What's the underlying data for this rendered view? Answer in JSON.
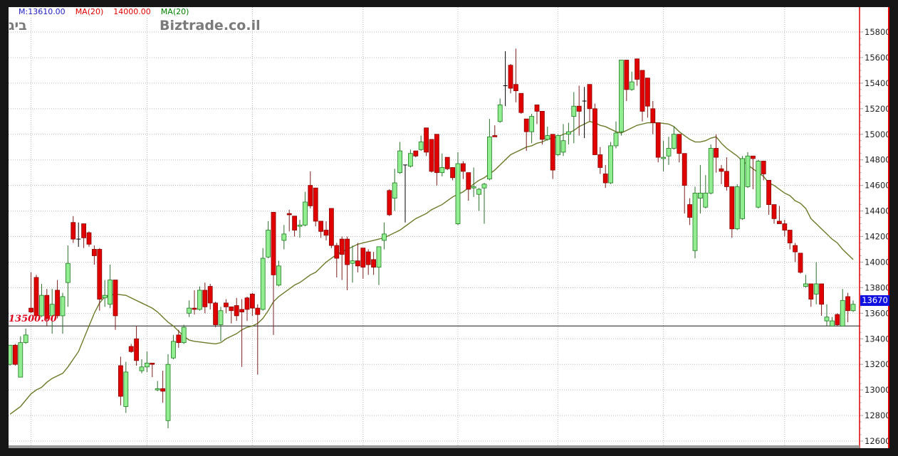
{
  "header": {
    "legend": [
      {
        "text": "M:13610.00",
        "color": "#2020c0"
      },
      {
        "text": "MA(20)",
        "color": "#e00000"
      },
      {
        "text": "14000.00",
        "color": "#e00000"
      },
      {
        "text": "MA(20)",
        "color": "#008000"
      }
    ],
    "logo_left": "ביג",
    "logo": "Biztrade.co.il"
  },
  "chart_data": {
    "type": "candlestick",
    "ylim": [
      12600,
      15800
    ],
    "yticks": [
      12600,
      12800,
      13000,
      13200,
      13400,
      13600,
      13800,
      14000,
      14200,
      14400,
      14600,
      14800,
      15000,
      15200,
      15400,
      15600,
      15800
    ],
    "grid": true,
    "horizontal_line": {
      "value": 13500,
      "label": "13500.00"
    },
    "last_price": {
      "label": "13670",
      "value": 13670
    },
    "colors": {
      "up": "#90ee90",
      "down": "#e00000",
      "ma": "#6b7a2a",
      "axis": "#e00000",
      "badge": "#1010e0"
    },
    "ohlc": [
      [
        13200,
        13350,
        13190,
        13350
      ],
      [
        13350,
        13360,
        13190,
        13200
      ],
      [
        13100,
        13420,
        13100,
        13370
      ],
      [
        13370,
        13480,
        13360,
        13430
      ],
      [
        13640,
        13920,
        13600,
        13610
      ],
      [
        13880,
        13900,
        13570,
        13580
      ],
      [
        13580,
        13830,
        13570,
        13740
      ],
      [
        13740,
        13790,
        13500,
        13560
      ],
      [
        13580,
        13790,
        13440,
        13670
      ],
      [
        13780,
        13860,
        13560,
        13580
      ],
      [
        13580,
        13760,
        13440,
        13730
      ],
      [
        13840,
        14130,
        13650,
        13990
      ],
      [
        14310,
        14360,
        14150,
        14180
      ],
      [
        14180,
        14310,
        14120,
        14180
      ],
      [
        14300,
        14300,
        14110,
        14190
      ],
      [
        14230,
        14240,
        14120,
        14140
      ],
      [
        14100,
        14130,
        13980,
        14050
      ],
      [
        14100,
        14110,
        13620,
        13710
      ],
      [
        13720,
        13860,
        13650,
        13740
      ],
      [
        13670,
        13980,
        13640,
        13860
      ],
      [
        13860,
        13860,
        13470,
        13580
      ],
      [
        13190,
        13260,
        12880,
        12950
      ],
      [
        12870,
        13220,
        12820,
        13140
      ],
      [
        13340,
        13360,
        13290,
        13300
      ],
      [
        13400,
        13500,
        13190,
        13230
      ],
      [
        13150,
        13240,
        13130,
        13180
      ],
      [
        13180,
        13300,
        13140,
        13210
      ],
      [
        13210,
        13210,
        13100,
        13200
      ],
      [
        13000,
        13070,
        12990,
        13010
      ],
      [
        13010,
        13150,
        12900,
        12990
      ],
      [
        12760,
        13280,
        12700,
        13200
      ],
      [
        13250,
        13430,
        13240,
        13380
      ],
      [
        13430,
        13470,
        13330,
        13370
      ],
      [
        13370,
        13510,
        13360,
        13490
      ],
      [
        13600,
        13700,
        13570,
        13640
      ],
      [
        13640,
        13780,
        13590,
        13630
      ],
      [
        13630,
        13810,
        13620,
        13780
      ],
      [
        13780,
        13840,
        13600,
        13650
      ],
      [
        13810,
        13830,
        13630,
        13680
      ],
      [
        13680,
        13690,
        13490,
        13510
      ],
      [
        13510,
        13650,
        13380,
        13620
      ],
      [
        13680,
        13710,
        13600,
        13650
      ],
      [
        13650,
        13650,
        13520,
        13620
      ],
      [
        13660,
        13720,
        13540,
        13580
      ],
      [
        13630,
        13710,
        13180,
        13610
      ],
      [
        13720,
        13730,
        13540,
        13630
      ],
      [
        13750,
        13760,
        13580,
        13640
      ],
      [
        13640,
        13670,
        13120,
        13590
      ],
      [
        13630,
        14110,
        13620,
        14030
      ],
      [
        14040,
        14320,
        14030,
        14250
      ],
      [
        14390,
        14390,
        13430,
        13900
      ],
      [
        13820,
        14010,
        13810,
        13970
      ],
      [
        14170,
        14290,
        14100,
        14220
      ],
      [
        14380,
        14410,
        14240,
        14370
      ],
      [
        14360,
        14360,
        14200,
        14250
      ],
      [
        14280,
        14330,
        14190,
        14290
      ],
      [
        14290,
        14550,
        14280,
        14470
      ],
      [
        14600,
        14710,
        14420,
        14440
      ],
      [
        14580,
        14580,
        14280,
        14320
      ],
      [
        14320,
        14320,
        14190,
        14240
      ],
      [
        14250,
        14320,
        14170,
        14210
      ],
      [
        14420,
        14420,
        14110,
        14130
      ],
      [
        14130,
        14150,
        13880,
        14030
      ],
      [
        14180,
        14200,
        13860,
        14060
      ],
      [
        14180,
        14200,
        13780,
        13980
      ],
      [
        13990,
        14130,
        13840,
        14010
      ],
      [
        14010,
        14150,
        13920,
        13970
      ],
      [
        14110,
        14110,
        13870,
        13960
      ],
      [
        14080,
        14100,
        13900,
        13980
      ],
      [
        14020,
        14080,
        13900,
        13960
      ],
      [
        13960,
        14120,
        13820,
        14120
      ],
      [
        14170,
        14310,
        14100,
        14220
      ],
      [
        14560,
        14570,
        14360,
        14370
      ],
      [
        14500,
        14730,
        14400,
        14620
      ],
      [
        14700,
        14940,
        14690,
        14870
      ],
      [
        14760,
        14760,
        14310,
        14760
      ],
      [
        14750,
        14880,
        14740,
        14850
      ],
      [
        14870,
        14870,
        14820,
        14830
      ],
      [
        14880,
        14990,
        14870,
        14940
      ],
      [
        15050,
        15050,
        14830,
        14860
      ],
      [
        14960,
        14960,
        14700,
        14710
      ],
      [
        15000,
        15000,
        14600,
        14700
      ],
      [
        14700,
        14850,
        14670,
        14740
      ],
      [
        14820,
        14820,
        14720,
        14730
      ],
      [
        14740,
        14740,
        14640,
        14660
      ],
      [
        14300,
        14860,
        14290,
        14770
      ],
      [
        14770,
        14790,
        14650,
        14710
      ],
      [
        14700,
        14700,
        14480,
        14570
      ],
      [
        14580,
        14740,
        14510,
        14590
      ],
      [
        14530,
        14580,
        14400,
        14570
      ],
      [
        14580,
        14620,
        14300,
        14610
      ],
      [
        14650,
        15120,
        14640,
        14980
      ],
      [
        14990,
        15070,
        14980,
        14980
      ],
      [
        15100,
        15280,
        15090,
        15230
      ],
      [
        15380,
        15650,
        15220,
        15380
      ],
      [
        15540,
        15550,
        15320,
        15360
      ],
      [
        15390,
        15670,
        15250,
        15340
      ],
      [
        15320,
        15320,
        15160,
        15170
      ],
      [
        15120,
        15120,
        14870,
        15020
      ],
      [
        15020,
        15160,
        14930,
        15140
      ],
      [
        15230,
        15230,
        15080,
        15180
      ],
      [
        15180,
        15180,
        14920,
        14960
      ],
      [
        14960,
        15060,
        14950,
        14990
      ],
      [
        15000,
        15000,
        14650,
        14720
      ],
      [
        14840,
        15000,
        14830,
        14990
      ],
      [
        14860,
        15080,
        14830,
        14950
      ],
      [
        15000,
        15090,
        14920,
        15020
      ],
      [
        15140,
        15330,
        14930,
        15220
      ],
      [
        15220,
        15380,
        14990,
        15180
      ],
      [
        15260,
        15370,
        14970,
        15260
      ],
      [
        15390,
        15390,
        15100,
        15200
      ],
      [
        15200,
        15240,
        14840,
        14840
      ],
      [
        14840,
        14900,
        14690,
        14740
      ],
      [
        14690,
        14760,
        14580,
        14620
      ],
      [
        14620,
        14940,
        14610,
        14910
      ],
      [
        14910,
        15100,
        14890,
        15010
      ],
      [
        15020,
        15580,
        14990,
        15580
      ],
      [
        15580,
        15580,
        15260,
        15350
      ],
      [
        15350,
        15490,
        15340,
        15410
      ],
      [
        15590,
        15590,
        15380,
        15430
      ],
      [
        15500,
        15500,
        15100,
        15180
      ],
      [
        15440,
        15440,
        15130,
        15220
      ],
      [
        15200,
        15260,
        15000,
        15090
      ],
      [
        15090,
        15090,
        14780,
        14820
      ],
      [
        14810,
        14950,
        14710,
        14820
      ],
      [
        14830,
        14980,
        14760,
        14890
      ],
      [
        14890,
        15060,
        14880,
        15000
      ],
      [
        15000,
        15000,
        14780,
        14850
      ],
      [
        14850,
        14850,
        14380,
        14600
      ],
      [
        14450,
        14500,
        14290,
        14350
      ],
      [
        14090,
        14590,
        14030,
        14540
      ],
      [
        14500,
        14760,
        14380,
        14540
      ],
      [
        14430,
        14680,
        14420,
        14540
      ],
      [
        14540,
        14920,
        14530,
        14890
      ],
      [
        14890,
        15000,
        14700,
        14820
      ],
      [
        14730,
        14760,
        14610,
        14710
      ],
      [
        14710,
        14820,
        14560,
        14590
      ],
      [
        14590,
        14590,
        14190,
        14260
      ],
      [
        14260,
        14610,
        14250,
        14590
      ],
      [
        14340,
        14830,
        14330,
        14810
      ],
      [
        14590,
        14860,
        14580,
        14830
      ],
      [
        14830,
        14830,
        14570,
        14810
      ],
      [
        14430,
        14800,
        14420,
        14790
      ],
      [
        14790,
        14790,
        14640,
        14690
      ],
      [
        14640,
        14640,
        14370,
        14450
      ],
      [
        14450,
        14450,
        14300,
        14340
      ],
      [
        14320,
        14440,
        14300,
        14300
      ],
      [
        14300,
        14330,
        14200,
        14250
      ],
      [
        14250,
        14250,
        14100,
        14150
      ],
      [
        14130,
        14150,
        14000,
        14080
      ],
      [
        14070,
        14070,
        13910,
        13920
      ],
      [
        13810,
        13900,
        13800,
        13830
      ],
      [
        13830,
        13830,
        13650,
        13710
      ],
      [
        13750,
        14000,
        13670,
        13830
      ],
      [
        13830,
        13830,
        13580,
        13670
      ],
      [
        13540,
        13670,
        13500,
        13570
      ],
      [
        13500,
        13570,
        13500,
        13540
      ],
      [
        13590,
        13600,
        13500,
        13510
      ],
      [
        13500,
        13790,
        13500,
        13700
      ],
      [
        13730,
        13760,
        13530,
        13620
      ],
      [
        13620,
        13700,
        13610,
        13670
      ]
    ],
    "ma20": [
      12810,
      12840,
      12870,
      12920,
      12970,
      13000,
      13020,
      13060,
      13090,
      13110,
      13130,
      13180,
      13240,
      13300,
      13400,
      13500,
      13600,
      13680,
      13730,
      13740,
      13750,
      13745,
      13740,
      13720,
      13700,
      13680,
      13660,
      13640,
      13610,
      13570,
      13530,
      13500,
      13460,
      13420,
      13390,
      13380,
      13375,
      13370,
      13365,
      13360,
      13370,
      13400,
      13420,
      13440,
      13470,
      13490,
      13500,
      13520,
      13560,
      13620,
      13690,
      13730,
      13760,
      13790,
      13820,
      13840,
      13870,
      13900,
      13920,
      13960,
      14000,
      14030,
      14060,
      14080,
      14100,
      14120,
      14140,
      14150,
      14160,
      14170,
      14180,
      14190,
      14210,
      14230,
      14250,
      14280,
      14310,
      14340,
      14360,
      14380,
      14410,
      14430,
      14450,
      14480,
      14510,
      14530,
      14550,
      14580,
      14610,
      14640,
      14660,
      14690,
      14720,
      14760,
      14800,
      14840,
      14860,
      14880,
      14900,
      14910,
      14930,
      14940,
      14960,
      14970,
      14980,
      15000,
      15010,
      15030,
      15060,
      15080,
      15100,
      15090,
      15070,
      15060,
      15040,
      15020,
      15010,
      15030,
      15050,
      15070,
      15080,
      15090,
      15090,
      15090,
      15085,
      15080,
      15060,
      15020,
      14990,
      14960,
      14940,
      14940,
      14950,
      14970,
      14980,
      14930,
      14890,
      14860,
      14830,
      14790,
      14760,
      14730,
      14700,
      14670,
      14620,
      14600,
      14570,
      14540,
      14520,
      14480,
      14460,
      14420,
      14340,
      14300,
      14260,
      14220,
      14180,
      14150,
      14100,
      14060,
      14020
    ]
  }
}
